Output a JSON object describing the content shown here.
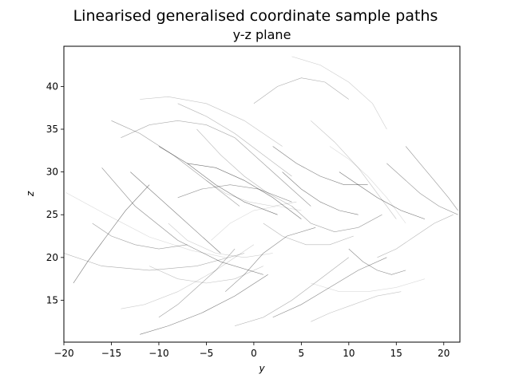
{
  "chart_data": {
    "type": "line",
    "title": "Linearised generalised coordinate sample paths",
    "subtitle": "y-z plane",
    "xlabel": "y",
    "ylabel": "z",
    "xlim": [
      -20,
      21.7
    ],
    "ylim": [
      10.1,
      44.7
    ],
    "xticks": [
      -20,
      -15,
      -10,
      -5,
      0,
      5,
      10,
      15,
      20
    ],
    "yticks": [
      15,
      20,
      25,
      30,
      35,
      40
    ],
    "grid": false,
    "legend": "none",
    "line_color": "#000000",
    "series": [
      {
        "x": [
          -19.8,
          -15.5,
          -11.0,
          -6.5,
          -3.0
        ],
        "y": [
          27.6,
          25.0,
          22.4,
          20.8,
          20.0
        ]
      },
      {
        "x": [
          -16.0,
          -12.5,
          -8.0,
          -3.5,
          1.0
        ],
        "y": [
          30.5,
          26.0,
          22.0,
          19.5,
          18.0
        ]
      },
      {
        "x": [
          -20.0,
          -16.0,
          -11.0,
          -6.0,
          -1.0
        ],
        "y": [
          20.5,
          19.0,
          18.5,
          19.0,
          20.5
        ]
      },
      {
        "x": [
          -14.0,
          -11.5,
          -8.0,
          -4.0,
          0.0
        ],
        "y": [
          14.0,
          14.5,
          16.0,
          18.5,
          21.5
        ]
      },
      {
        "x": [
          -12.0,
          -9.0,
          -5.5,
          -2.0,
          1.5
        ],
        "y": [
          11.0,
          12.0,
          13.5,
          15.5,
          18.0
        ]
      },
      {
        "x": [
          -15.0,
          -12.0,
          -8.5,
          -5.0,
          -1.5
        ],
        "y": [
          36.0,
          34.5,
          32.0,
          29.0,
          26.0
        ]
      },
      {
        "x": [
          -12.0,
          -9.0,
          -5.0,
          -1.0,
          3.0
        ],
        "y": [
          38.5,
          38.8,
          38.0,
          36.0,
          33.0
        ]
      },
      {
        "x": [
          -10.0,
          -7.0,
          -4.0,
          -1.0,
          2.5
        ],
        "y": [
          33.0,
          31.0,
          28.5,
          26.5,
          25.0
        ]
      },
      {
        "x": [
          -8.0,
          -5.5,
          -2.5,
          0.5,
          4.0
        ],
        "y": [
          27.0,
          28.0,
          28.5,
          28.0,
          26.5
        ]
      },
      {
        "x": [
          -6.0,
          -3.5,
          -1.0,
          1.5,
          4.0
        ],
        "y": [
          35.0,
          32.0,
          29.5,
          27.5,
          26.0
        ]
      },
      {
        "x": [
          -4.5,
          -2.5,
          0.0,
          2.5,
          5.0
        ],
        "y": [
          22.0,
          24.0,
          25.5,
          26.0,
          25.5
        ]
      },
      {
        "x": [
          -3.0,
          -1.0,
          1.0,
          3.5,
          6.5
        ],
        "y": [
          16.0,
          18.0,
          20.5,
          22.5,
          23.5
        ]
      },
      {
        "x": [
          0.0,
          2.5,
          5.0,
          7.5,
          10.0
        ],
        "y": [
          38.0,
          40.0,
          41.0,
          40.5,
          38.5
        ]
      },
      {
        "x": [
          4.0,
          7.0,
          10.0,
          12.5,
          14.0
        ],
        "y": [
          43.5,
          42.5,
          40.5,
          38.0,
          35.0
        ]
      },
      {
        "x": [
          2.0,
          4.5,
          7.0,
          9.5,
          12.0
        ],
        "y": [
          33.0,
          31.0,
          29.5,
          28.5,
          28.5
        ]
      },
      {
        "x": [
          4.0,
          6.0,
          8.5,
          11.0,
          13.5
        ],
        "y": [
          26.0,
          24.0,
          23.0,
          23.5,
          25.0
        ]
      },
      {
        "x": [
          6.0,
          8.5,
          11.0,
          13.0,
          15.0
        ],
        "y": [
          36.0,
          33.5,
          30.5,
          27.5,
          24.5
        ]
      },
      {
        "x": [
          9.0,
          11.0,
          13.0,
          15.5,
          18.0
        ],
        "y": [
          30.0,
          28.5,
          27.0,
          25.5,
          24.5
        ]
      },
      {
        "x": [
          14.0,
          15.5,
          17.5,
          19.5,
          21.5
        ],
        "y": [
          31.0,
          29.5,
          27.5,
          26.0,
          25.0
        ]
      },
      {
        "x": [
          13.0,
          15.0,
          17.0,
          19.0,
          21.0
        ],
        "y": [
          20.0,
          21.0,
          22.5,
          24.0,
          25.0
        ]
      },
      {
        "x": [
          6.0,
          9.0,
          12.0,
          15.0,
          18.0
        ],
        "y": [
          17.0,
          16.0,
          16.0,
          16.5,
          17.5
        ]
      },
      {
        "x": [
          2.0,
          5.0,
          8.0,
          11.0,
          14.0
        ],
        "y": [
          13.0,
          14.5,
          16.5,
          18.5,
          20.0
        ]
      },
      {
        "x": [
          -2.0,
          1.0,
          4.0,
          7.0,
          10.0
        ],
        "y": [
          12.0,
          13.0,
          15.0,
          17.5,
          20.0
        ]
      },
      {
        "x": [
          -9.0,
          -7.0,
          -4.0,
          -1.0,
          2.0
        ],
        "y": [
          24.0,
          22.0,
          20.5,
          20.0,
          20.5
        ]
      },
      {
        "x": [
          -13.0,
          -11.0,
          -8.5,
          -6.0,
          -3.5
        ],
        "y": [
          30.0,
          28.0,
          25.5,
          23.0,
          20.5
        ]
      },
      {
        "x": [
          -17.0,
          -15.0,
          -12.5,
          -10.0,
          -7.0
        ],
        "y": [
          24.0,
          22.5,
          21.5,
          21.0,
          21.5
        ]
      },
      {
        "x": [
          -11.0,
          -8.0,
          -5.0,
          -2.0,
          1.0
        ],
        "y": [
          19.0,
          17.5,
          17.0,
          17.5,
          19.0
        ]
      },
      {
        "x": [
          -7.0,
          -4.0,
          -1.0,
          2.0,
          5.0
        ],
        "y": [
          31.0,
          30.5,
          29.0,
          27.0,
          24.5
        ]
      },
      {
        "x": [
          -2.0,
          0.0,
          2.0,
          4.0,
          6.0
        ],
        "y": [
          34.0,
          32.0,
          30.0,
          28.0,
          26.0
        ]
      },
      {
        "x": [
          1.0,
          3.0,
          5.5,
          8.0,
          10.5
        ],
        "y": [
          24.0,
          22.5,
          21.5,
          21.5,
          22.5
        ]
      },
      {
        "x": [
          8.0,
          10.0,
          12.0,
          14.0,
          16.0
        ],
        "y": [
          33.0,
          31.5,
          29.5,
          27.0,
          24.0
        ]
      },
      {
        "x": [
          10.0,
          11.5,
          13.0,
          14.5,
          16.0
        ],
        "y": [
          21.0,
          19.5,
          18.5,
          18.0,
          18.5
        ]
      },
      {
        "x": [
          -14.0,
          -11.0,
          -8.0,
          -5.0,
          -2.0
        ],
        "y": [
          34.0,
          35.5,
          36.0,
          35.5,
          34.0
        ]
      },
      {
        "x": [
          -5.0,
          -3.0,
          -0.5,
          2.0,
          4.5
        ],
        "y": [
          29.0,
          27.5,
          26.5,
          26.0,
          26.5
        ]
      },
      {
        "x": [
          3.0,
          5.0,
          7.0,
          9.0,
          11.0
        ],
        "y": [
          30.0,
          28.0,
          26.5,
          25.5,
          25.0
        ]
      },
      {
        "x": [
          -10.0,
          -8.0,
          -6.0,
          -4.0,
          -2.0
        ],
        "y": [
          13.0,
          14.5,
          16.5,
          18.5,
          21.0
        ]
      },
      {
        "x": [
          6.0,
          8.0,
          10.5,
          13.0,
          15.5
        ],
        "y": [
          12.5,
          13.5,
          14.5,
          15.5,
          16.0
        ]
      },
      {
        "x": [
          -19.0,
          -17.5,
          -15.5,
          -13.5,
          -11.0
        ],
        "y": [
          17.0,
          19.5,
          22.5,
          25.5,
          28.5
        ]
      },
      {
        "x": [
          16.0,
          17.5,
          19.0,
          20.5,
          21.5
        ],
        "y": [
          33.0,
          31.0,
          29.0,
          27.0,
          25.5
        ]
      },
      {
        "x": [
          -8.0,
          -5.0,
          -2.0,
          1.0,
          4.0
        ],
        "y": [
          38.0,
          36.5,
          34.5,
          32.0,
          29.5
        ]
      }
    ]
  }
}
